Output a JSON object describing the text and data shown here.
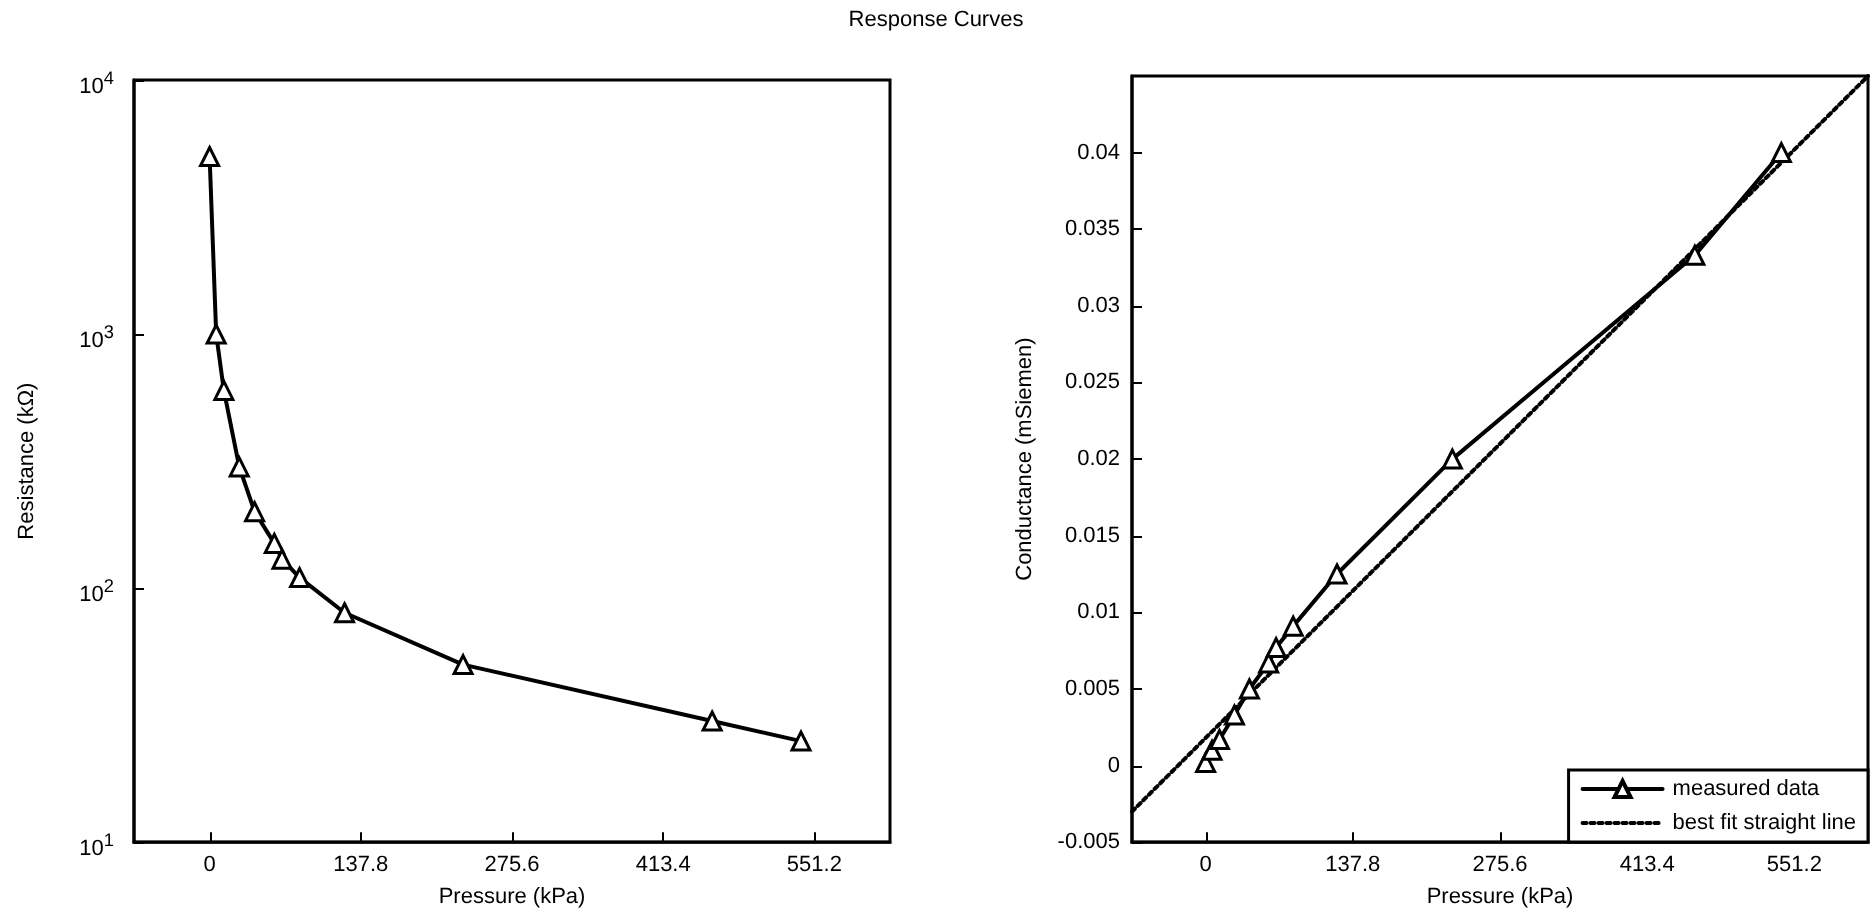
{
  "chart_data": [
    {
      "type": "line",
      "title": "Response Curves",
      "xlabel": "Pressure (kPa)",
      "ylabel": "Resistance (kΩ)",
      "log": "y",
      "marker": "triangle",
      "line_style": "solid",
      "grid": false,
      "legend": false,
      "xlim": [
        -68.9,
        620.1
      ],
      "xticks": [
        0,
        137.8,
        275.6,
        413.4,
        551.2
      ],
      "ylim": [
        10,
        10000
      ],
      "yticks": [
        {
          "value": 10,
          "label": "10$^{1}$"
        },
        {
          "value": 100,
          "label": "10$^{2}$"
        },
        {
          "value": 1000,
          "label": "10$^{3}$"
        },
        {
          "value": 10000,
          "label": "10$^{4}$"
        }
      ],
      "x": [
        0,
        6,
        13,
        27,
        41,
        59,
        66,
        82,
        123,
        231,
        458,
        539
      ],
      "series": [
        {
          "color": "#000000",
          "values": [
            5000,
            1000,
            600,
            300,
            200,
            150,
            130,
            110,
            80,
            50,
            30,
            25
          ]
        }
      ]
    },
    {
      "type": "line",
      "xlabel": "Pressure (kPa)",
      "ylabel": "Conductance (mSiemen)",
      "grid": false,
      "legend": "bottom right",
      "xlim": [
        -68.9,
        620.1
      ],
      "xticks": [
        0,
        137.8,
        275.6,
        413.4,
        551.2
      ],
      "ylim": [
        -0.005,
        0.045
      ],
      "yticks": [
        -0.005,
        0,
        0.005,
        0.01,
        0.015,
        0.02,
        0.025,
        0.03,
        0.035,
        0.04
      ],
      "series": [
        {
          "name": "measured data",
          "color": "#000000",
          "marker": "triangle",
          "line_style": "solid",
          "x": [
            0,
            6,
            13,
            27,
            41,
            59,
            66,
            82,
            123,
            231,
            458,
            539
          ],
          "values": [
            0.0002,
            0.001,
            0.0017,
            0.0033,
            0.005,
            0.0067,
            0.0077,
            0.0091,
            0.0125,
            0.02,
            0.0333,
            0.04
          ]
        },
        {
          "name": "best fit straight line",
          "color": "#000000",
          "marker": "none",
          "line_style": "dotted",
          "x": [
            -68.9,
            620.1
          ],
          "values": [
            -0.003,
            0.045
          ]
        }
      ]
    }
  ]
}
